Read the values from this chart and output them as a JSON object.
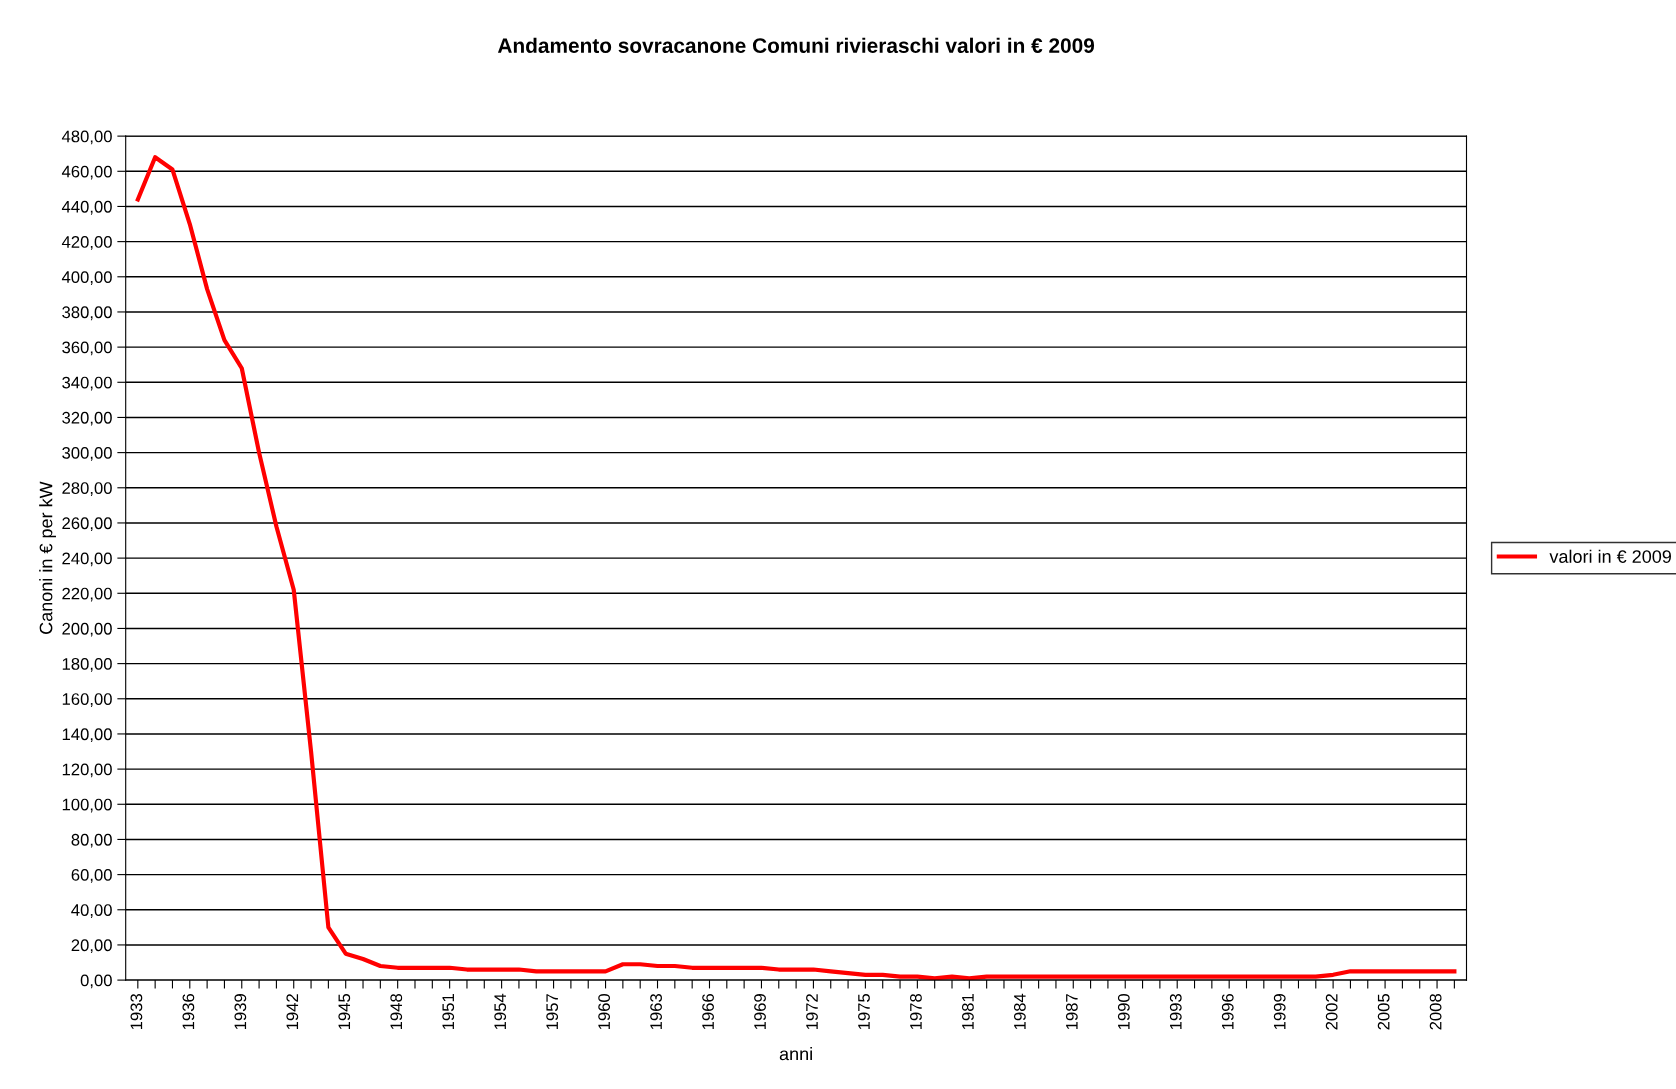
{
  "chart_data": {
    "type": "line",
    "title": "Andamento sovracanone Comuni rivieraschi valori in € 2009",
    "xlabel": "anni",
    "ylabel": "Canoni in € per kW",
    "categories": [
      "1933",
      null,
      null,
      "1936",
      null,
      null,
      "1939",
      null,
      null,
      "1942",
      null,
      null,
      "1945",
      null,
      null,
      "1948",
      null,
      null,
      "1951",
      null,
      null,
      "1954",
      null,
      null,
      "1957",
      null,
      null,
      "1960",
      null,
      null,
      "1963",
      null,
      null,
      "1966",
      null,
      null,
      "1969",
      null,
      null,
      "1972",
      null,
      null,
      "1975",
      null,
      null,
      "1978",
      null,
      null,
      "1981",
      null,
      null,
      "1984",
      null,
      null,
      "1987",
      null,
      null,
      "1990",
      null,
      null,
      "1993",
      null,
      null,
      "1996",
      null,
      null,
      "1999",
      null,
      null,
      "2002",
      null,
      null,
      "2005",
      null,
      null,
      "2008",
      null
    ],
    "series": [
      {
        "name": "valori in € 2009",
        "color": "#ff0000",
        "values": [
          444,
          468,
          461,
          430,
          393,
          364,
          348,
          300,
          258,
          222,
          130,
          30,
          15,
          12,
          8,
          7,
          7,
          7,
          7,
          6,
          6,
          6,
          6,
          5,
          5,
          5,
          5,
          5,
          9,
          9,
          8,
          8,
          7,
          7,
          7,
          7,
          7,
          6,
          6,
          6,
          5,
          4,
          3,
          3,
          2,
          2,
          1,
          2,
          1,
          2,
          2,
          2,
          2,
          2,
          2,
          2,
          2,
          2,
          2,
          2,
          2,
          2,
          2,
          2,
          2,
          2,
          2,
          2,
          2,
          3,
          5,
          5,
          5,
          5,
          5,
          5,
          5
        ]
      }
    ],
    "ylim": [
      0,
      480
    ],
    "yticks": [
      {
        "value": 0,
        "label": "0,00"
      },
      {
        "value": 20,
        "label": "20,00"
      },
      {
        "value": 40,
        "label": "40,00"
      },
      {
        "value": 60,
        "label": "60,00"
      },
      {
        "value": 80,
        "label": "80,00"
      },
      {
        "value": 100,
        "label": "100,00"
      },
      {
        "value": 120,
        "label": "120,00"
      },
      {
        "value": 140,
        "label": "140,00"
      },
      {
        "value": 160,
        "label": "160,00"
      },
      {
        "value": 180,
        "label": "180,00"
      },
      {
        "value": 200,
        "label": "200,00"
      },
      {
        "value": 220,
        "label": "220,00"
      },
      {
        "value": 240,
        "label": "240,00"
      },
      {
        "value": 260,
        "label": "260,00"
      },
      {
        "value": 280,
        "label": "280,00"
      },
      {
        "value": 300,
        "label": "300,00"
      },
      {
        "value": 320,
        "label": "320,00"
      },
      {
        "value": 340,
        "label": "340,00"
      },
      {
        "value": 360,
        "label": "360,00"
      },
      {
        "value": 380,
        "label": "380,00"
      },
      {
        "value": 400,
        "label": "400,00"
      },
      {
        "value": 420,
        "label": "420,00"
      },
      {
        "value": 440,
        "label": "440,00"
      },
      {
        "value": 460,
        "label": "460,00"
      },
      {
        "value": 480,
        "label": "480,00"
      }
    ],
    "grid": "y",
    "legend": "right",
    "marker": "none",
    "line_style": "solid"
  }
}
